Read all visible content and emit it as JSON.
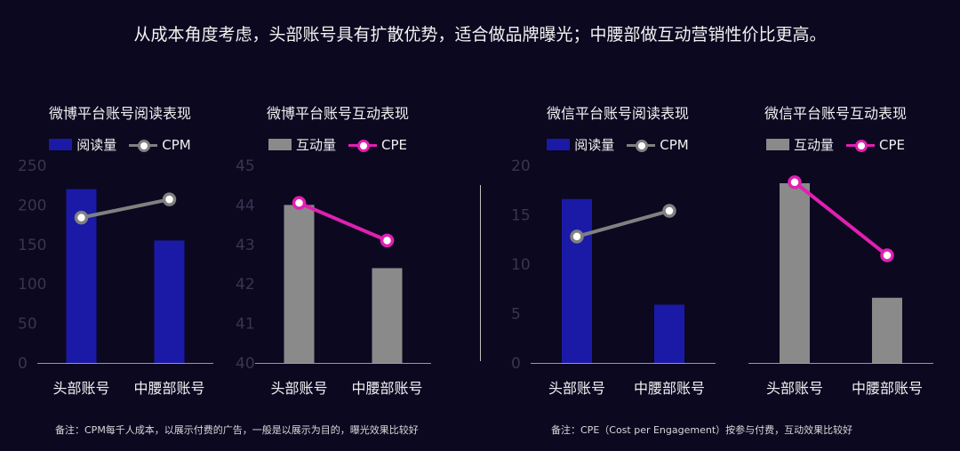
{
  "headline": "从成本角度考虑，头部账号具有扩散优势，适合做品牌曝光；中腰部做互动营销性价比更高。",
  "footnotes": {
    "left": "备注：CPM每千人成本，以展示付费的广告，一般是以展示为目的，曝光效果比较好",
    "right": "备注：CPE（Cost per Engagement）按参与付费，互动效果比较好"
  },
  "colors": {
    "blue_bar": "#1a1aa6",
    "gray_bar": "#8a8a8a",
    "cpm_line": "#808080",
    "cpe_line": "#e020b0",
    "background": "#0c0820"
  },
  "chart_data": [
    {
      "type": "bar",
      "title": "微博平台账号阅读表现",
      "categories": [
        "头部账号",
        "中腰部账号"
      ],
      "ylim": [
        0,
        250
      ],
      "yticks": [
        "0",
        "50",
        "100",
        "150",
        "200",
        "250"
      ],
      "series": [
        {
          "name": "阅读量",
          "kind": "bar",
          "values": [
            220,
            155
          ]
        },
        {
          "name": "CPM",
          "kind": "line",
          "values": [
            184,
            207
          ]
        }
      ],
      "legend": "top"
    },
    {
      "type": "bar",
      "title": "微博平台账号互动表现",
      "categories": [
        "头部账号",
        "中腰部账号"
      ],
      "ylim": [
        40,
        45
      ],
      "yticks": [
        "40",
        "41",
        "42",
        "43",
        "44",
        "45"
      ],
      "series": [
        {
          "name": "互动量",
          "kind": "bar",
          "values": [
            44.0,
            42.4
          ]
        },
        {
          "name": "CPE",
          "kind": "line",
          "values": [
            44.05,
            43.1
          ]
        }
      ],
      "legend": "top"
    },
    {
      "type": "bar",
      "title": "微信平台账号阅读表现",
      "categories": [
        "头部账号",
        "中腰部账号"
      ],
      "ylim": [
        0,
        20
      ],
      "yticks": [
        "0",
        "5",
        "10",
        "15",
        "20"
      ],
      "series": [
        {
          "name": "阅读量",
          "kind": "bar",
          "values": [
            16.6,
            5.9
          ]
        },
        {
          "name": "CPM",
          "kind": "line",
          "values": [
            12.8,
            15.4
          ]
        }
      ],
      "legend": "top"
    },
    {
      "type": "bar",
      "title": "微信平台账号互动表现",
      "categories": [
        "头部账号",
        "中腰部账号"
      ],
      "ylim": [
        0,
        20
      ],
      "yticks": [],
      "series": [
        {
          "name": "互动量",
          "kind": "bar",
          "values": [
            18.2,
            6.6
          ]
        },
        {
          "name": "CPE",
          "kind": "line",
          "values": [
            18.3,
            10.9
          ]
        }
      ],
      "legend": "top"
    }
  ]
}
